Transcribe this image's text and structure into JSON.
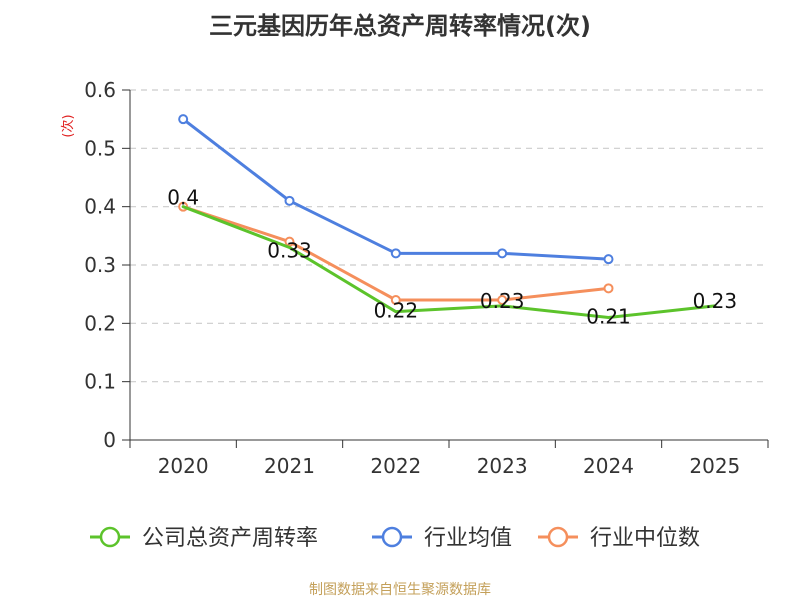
{
  "chart_data": {
    "type": "line",
    "title": "三元基因历年总资产周转率情况(次)",
    "ylabel": "(次)",
    "xlabel": "",
    "categories": [
      "2020",
      "2021",
      "2022",
      "2023",
      "2024",
      "2025"
    ],
    "ylim": [
      0,
      0.6
    ],
    "yticks": [
      {
        "value": 0,
        "label": "0"
      },
      {
        "value": 0.1,
        "label": "0.1"
      },
      {
        "value": 0.2,
        "label": "0.2"
      },
      {
        "value": 0.3,
        "label": "0.3"
      },
      {
        "value": 0.4,
        "label": "0.4"
      },
      {
        "value": 0.5,
        "label": "0.5"
      },
      {
        "value": 0.6,
        "label": "0.6"
      }
    ],
    "grid": true,
    "legend_position": "bottom",
    "series": [
      {
        "name": "公司总资产周转率",
        "color": "#5cc32b",
        "values": [
          0.4,
          0.33,
          0.22,
          0.23,
          0.21,
          0.23
        ],
        "data_labels": [
          "0.4",
          "0.33",
          "0.22",
          "0.23",
          "0.21",
          "0.23"
        ]
      },
      {
        "name": "行业均值",
        "color": "#4e7fdf",
        "values": [
          0.55,
          0.41,
          0.32,
          0.32,
          0.31,
          null
        ]
      },
      {
        "name": "行业中位数",
        "color": "#f58f5c",
        "values": [
          0.4,
          0.34,
          0.24,
          0.24,
          0.26,
          null
        ]
      }
    ]
  },
  "source_note": "制图数据来自恒生聚源数据库"
}
